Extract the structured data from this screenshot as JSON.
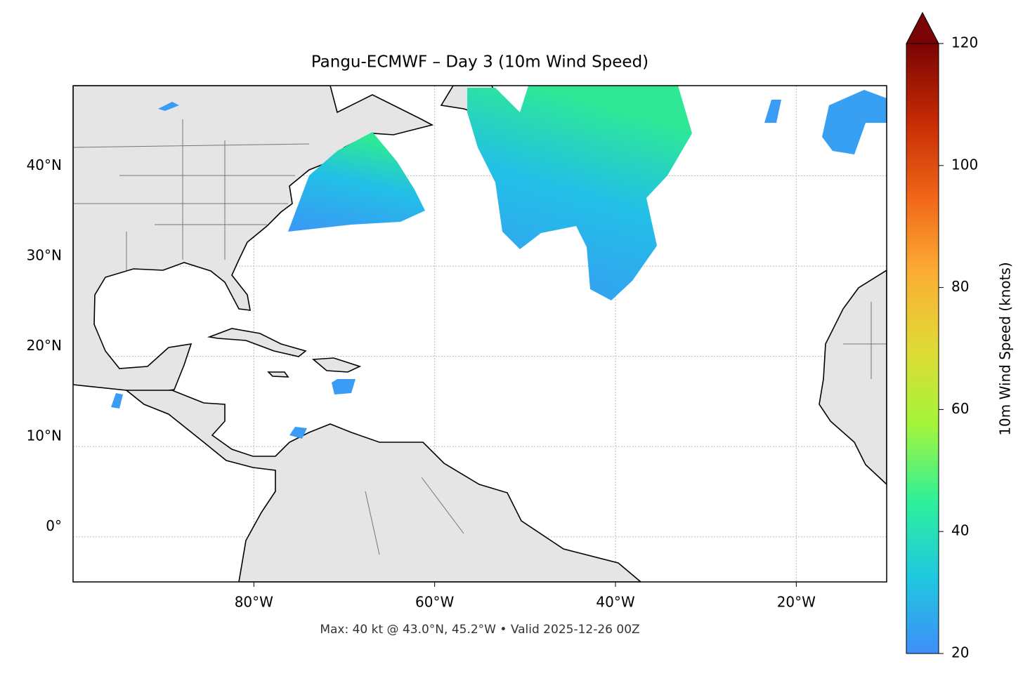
{
  "chart_data": {
    "type": "map",
    "title": "Pangu-ECMWF – Day 3 (10m Wind Speed)",
    "xlim": [
      -100,
      -10
    ],
    "ylim": [
      -5,
      50
    ],
    "xticks": [
      {
        "value": -80,
        "label": "80°W"
      },
      {
        "value": -60,
        "label": "60°W"
      },
      {
        "value": -40,
        "label": "40°W"
      },
      {
        "value": -20,
        "label": "20°W"
      }
    ],
    "yticks": [
      {
        "value": 0,
        "label": "0°"
      },
      {
        "value": 10,
        "label": "10°N"
      },
      {
        "value": 20,
        "label": "20°N"
      },
      {
        "value": 30,
        "label": "30°N"
      },
      {
        "value": 40,
        "label": "40°N"
      }
    ],
    "grid": true,
    "annotation": "Max: 40 kt @ 43.0°N, 45.2°W • Valid 2025-12-26 00Z",
    "colorbar": {
      "label": "10m Wind Speed (knots)",
      "lim": [
        20,
        120
      ],
      "ticks": [
        20,
        40,
        60,
        80,
        100,
        120
      ],
      "colors": [
        "#3f8ef8",
        "#1fc8e0",
        "#2ef09a",
        "#a4f53a",
        "#e0da35",
        "#fbae34",
        "#f06518",
        "#c42a04",
        "#7a0403"
      ]
    }
  }
}
